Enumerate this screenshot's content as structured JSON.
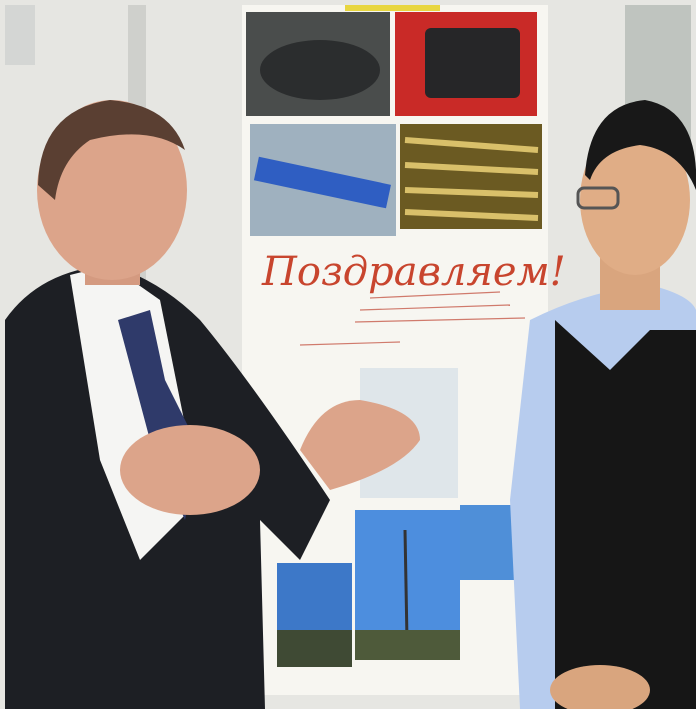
{
  "poster": {
    "title": "Поздравляем!"
  }
}
